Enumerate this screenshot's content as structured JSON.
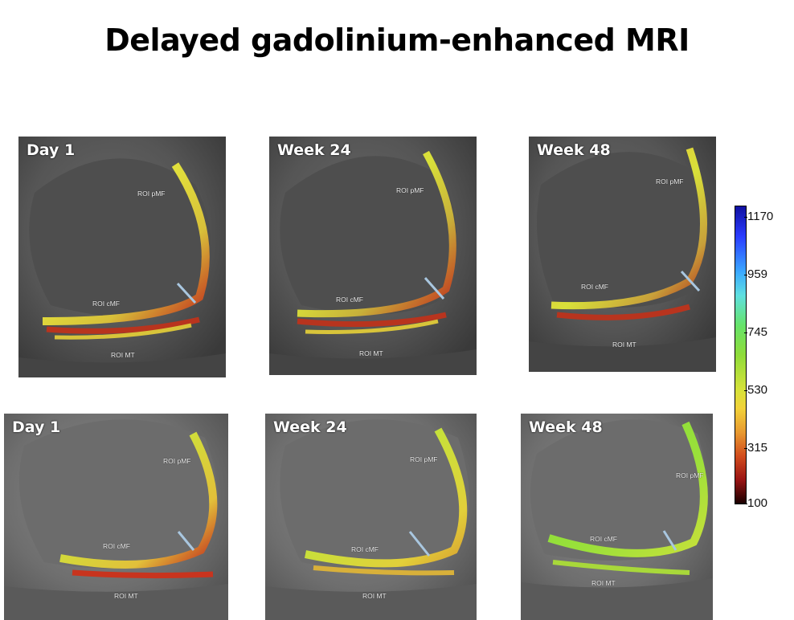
{
  "title": "Delayed gadolinium-enhanced MRI",
  "panels": [
    {
      "label": "Day 1",
      "roi_pmf": "ROI  pMF",
      "roi_cmf": "ROI  cMF",
      "roi_mt": "ROI  MT"
    },
    {
      "label": "Week 24",
      "roi_pmf": "ROI  pMF",
      "roi_cmf": "ROI  cMF",
      "roi_mt": "ROI  MT"
    },
    {
      "label": "Week 48",
      "roi_pmf": "ROI  pMF",
      "roi_cmf": "ROI  cMF",
      "roi_mt": "ROI  MT"
    },
    {
      "label": "Day 1",
      "roi_pmf": "ROI pMF",
      "roi_cmf": "ROI cMF",
      "roi_mt": "ROI MT"
    },
    {
      "label": "Week 24",
      "roi_pmf": "ROI pMF",
      "roi_cmf": "ROI cMF",
      "roi_mt": "ROI MT"
    },
    {
      "label": "Week 48",
      "roi_pmf": "ROI pMF",
      "roi_cmf": "ROI cMF",
      "roi_mt": "ROI MT"
    }
  ],
  "colorbar": {
    "ticks": [
      "1170",
      "959",
      "745",
      "530",
      "315",
      "100"
    ]
  },
  "colors": {
    "cartilage_low": "#c0281c",
    "cartilage_mid": "#e8e03a",
    "cartilage_high": "#7fdc3c",
    "roi_marker": "#a9c7e0"
  }
}
